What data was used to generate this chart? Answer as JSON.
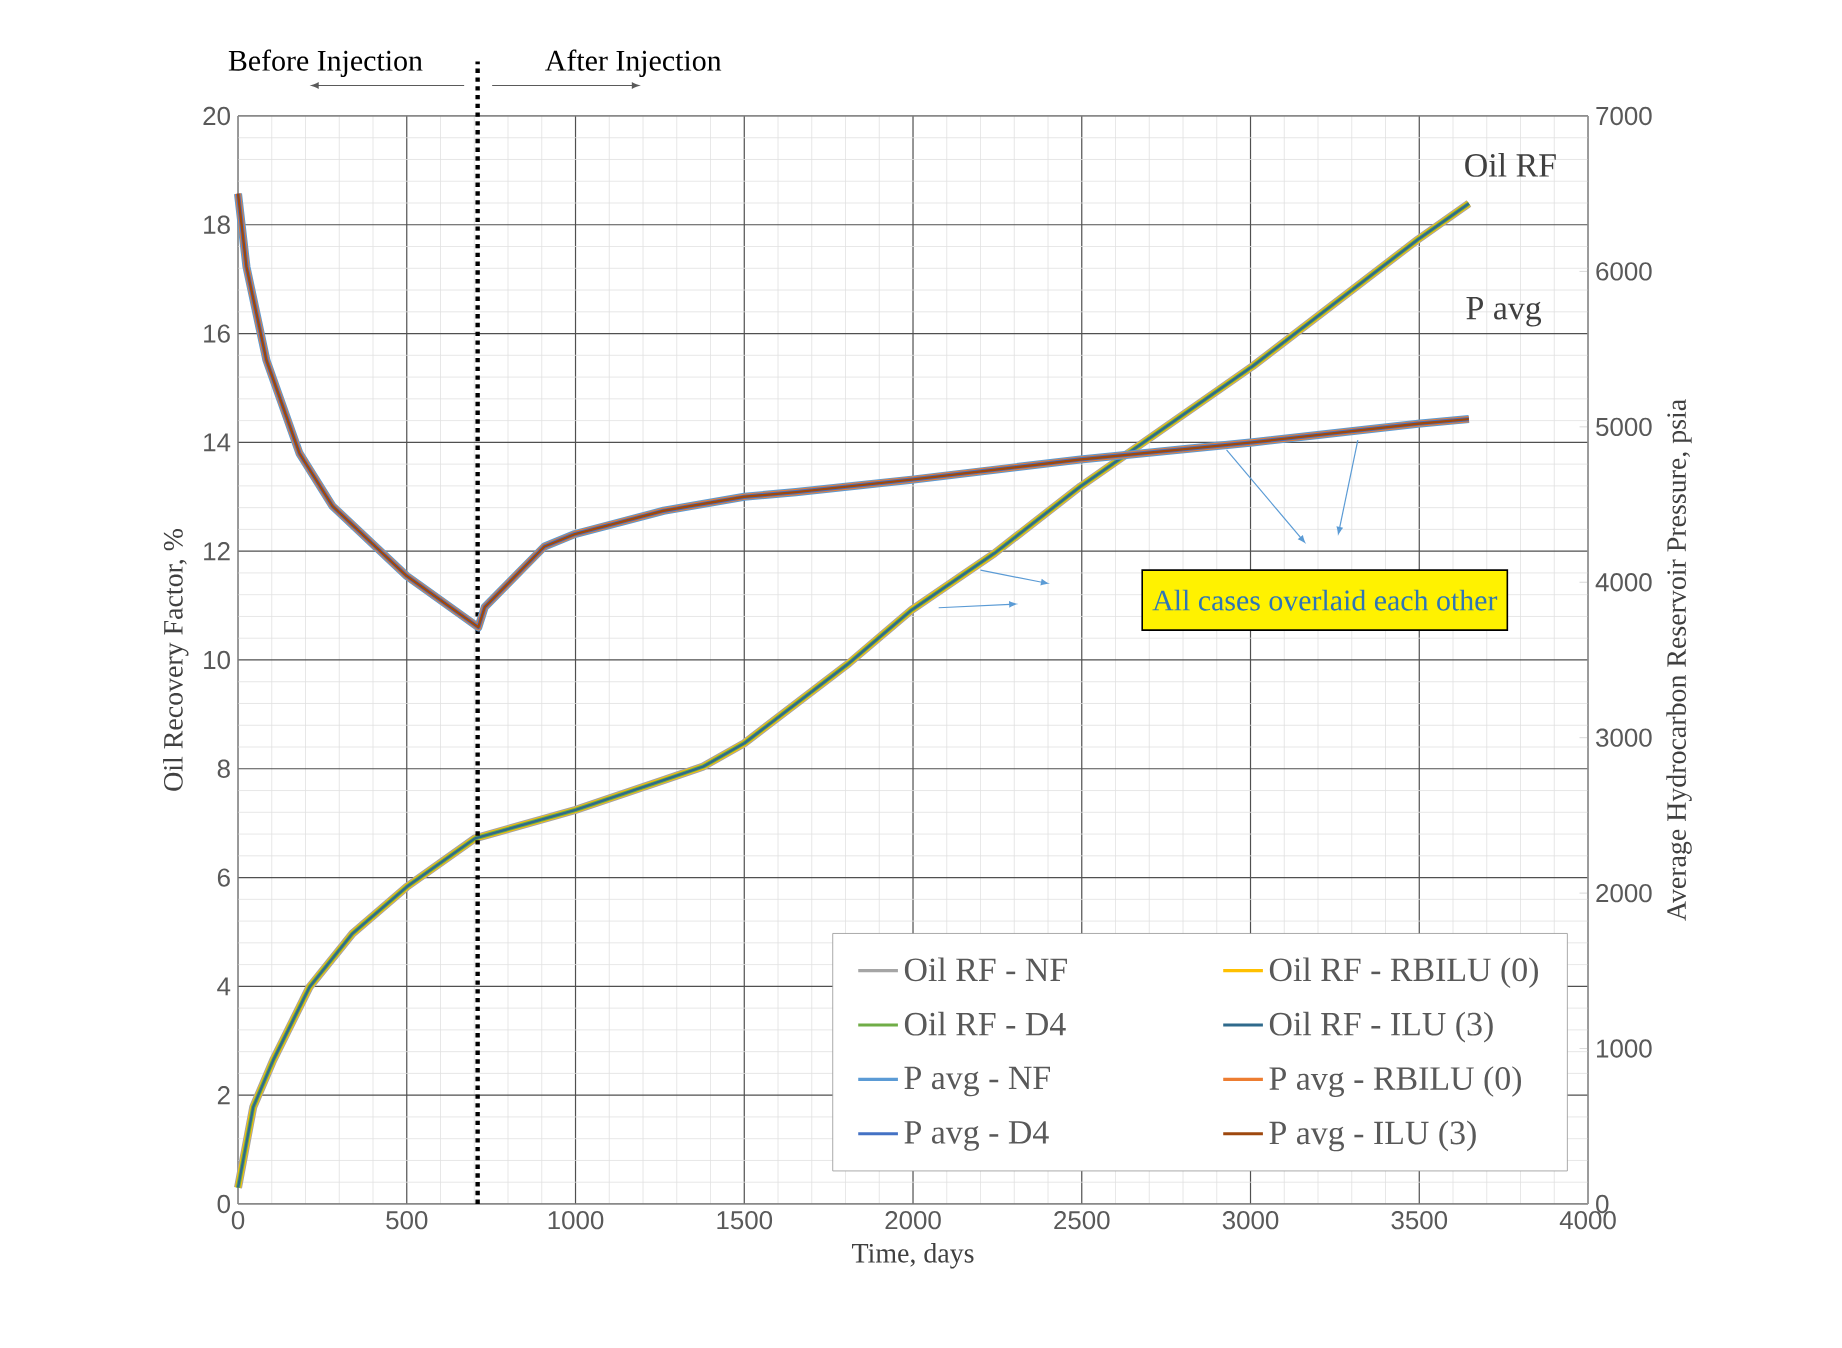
{
  "chart_data": {
    "type": "line",
    "xlabel": "Time, days",
    "ylabel": "Oil Recovery Factor, %",
    "y2label": "Average Hydrocarbon Reservoir Pressure, psia",
    "xlim": [
      0,
      4000
    ],
    "xticks": [
      0,
      500,
      1000,
      1500,
      2000,
      2500,
      3000,
      3500,
      4000
    ],
    "ylim": [
      0,
      20
    ],
    "yticks": [
      0,
      2,
      4,
      6,
      8,
      10,
      12,
      14,
      16,
      18,
      20
    ],
    "y2lim": [
      0,
      7000
    ],
    "y2ticks": [
      0,
      1000,
      2000,
      3000,
      4000,
      5000,
      6000,
      7000
    ],
    "grid": true,
    "legend": "bottom right",
    "marker": "none",
    "line_style": "solid",
    "ref_lines": [
      {
        "axis": "x",
        "value": 710,
        "color": "#000000",
        "line_style": "dotted"
      }
    ],
    "annotations": [
      "Before Injection",
      "After Injection",
      "Oil RF",
      "P avg",
      "All cases overlaid each other"
    ],
    "series": [
      {
        "name": "Oil RF - NF",
        "color": "#a5a5a5",
        "axis": "y",
        "x": [
          0,
          45,
          104,
          212,
          339,
          500,
          702,
          998,
          1261,
          1378,
          1500,
          1810,
          1996,
          2241,
          2496,
          3006,
          3496,
          3647
        ],
        "values": [
          0.3,
          1.78,
          2.64,
          3.99,
          4.97,
          5.83,
          6.72,
          7.24,
          7.79,
          8.04,
          8.47,
          9.94,
          10.92,
          11.96,
          13.19,
          15.4,
          17.73,
          18.39
        ]
      },
      {
        "name": "Oil RF - RBILU (0)",
        "color": "#ffc000",
        "axis": "y",
        "x": [
          0,
          45,
          104,
          212,
          339,
          500,
          702,
          998,
          1261,
          1378,
          1500,
          1810,
          1996,
          2241,
          2496,
          3006,
          3496,
          3647
        ],
        "values": [
          0.3,
          1.78,
          2.64,
          3.99,
          4.97,
          5.83,
          6.72,
          7.24,
          7.79,
          8.04,
          8.47,
          9.94,
          10.92,
          11.96,
          13.19,
          15.4,
          17.73,
          18.39
        ]
      },
      {
        "name": "Oil RF - D4",
        "color": "#70ad47",
        "axis": "y",
        "x": [
          0,
          45,
          104,
          212,
          339,
          500,
          702,
          998,
          1261,
          1378,
          1500,
          1810,
          1996,
          2241,
          2496,
          3006,
          3496,
          3647
        ],
        "values": [
          0.3,
          1.78,
          2.64,
          3.99,
          4.97,
          5.83,
          6.72,
          7.24,
          7.79,
          8.04,
          8.47,
          9.94,
          10.92,
          11.96,
          13.19,
          15.4,
          17.73,
          18.39
        ]
      },
      {
        "name": "Oil RF - ILU (3)",
        "color": "#2f6a8c",
        "axis": "y",
        "x": [
          0,
          45,
          104,
          212,
          339,
          500,
          702,
          998,
          1261,
          1378,
          1500,
          1810,
          1996,
          2241,
          2496,
          3006,
          3496,
          3647
        ],
        "values": [
          0.3,
          1.78,
          2.64,
          3.99,
          4.97,
          5.83,
          6.72,
          7.24,
          7.79,
          8.04,
          8.47,
          9.94,
          10.92,
          11.96,
          13.19,
          15.4,
          17.73,
          18.39
        ]
      },
      {
        "name": "P avg - NF",
        "color": "#5b9bd5",
        "axis": "y2",
        "x": [
          0,
          25,
          84,
          182,
          280,
          500,
          712,
          731,
          908,
          998,
          1261,
          1500,
          1653,
          1996,
          2496,
          3006,
          3496,
          3647
        ],
        "values": [
          6500,
          6030,
          5430,
          4830,
          4490,
          4040,
          3710,
          3840,
          4230,
          4310,
          4460,
          4550,
          4580,
          4660,
          4790,
          4900,
          5020,
          5050
        ]
      },
      {
        "name": "P avg - RBILU (0)",
        "color": "#ed7d31",
        "axis": "y2",
        "x": [
          0,
          25,
          84,
          182,
          280,
          500,
          712,
          731,
          908,
          998,
          1261,
          1500,
          1653,
          1996,
          2496,
          3006,
          3496,
          3647
        ],
        "values": [
          6500,
          6030,
          5430,
          4830,
          4490,
          4040,
          3710,
          3840,
          4230,
          4310,
          4460,
          4550,
          4580,
          4660,
          4790,
          4900,
          5020,
          5050
        ]
      },
      {
        "name": "P avg - D4",
        "color": "#4472c4",
        "axis": "y2",
        "x": [
          0,
          25,
          84,
          182,
          280,
          500,
          712,
          731,
          908,
          998,
          1261,
          1500,
          1653,
          1996,
          2496,
          3006,
          3496,
          3647
        ],
        "values": [
          6500,
          6030,
          5430,
          4830,
          4490,
          4040,
          3710,
          3840,
          4230,
          4310,
          4460,
          4550,
          4580,
          4660,
          4790,
          4900,
          5020,
          5050
        ]
      },
      {
        "name": "P avg - ILU (3)",
        "color": "#9e480e",
        "axis": "y2",
        "x": [
          0,
          25,
          84,
          182,
          280,
          500,
          712,
          731,
          908,
          998,
          1261,
          1500,
          1653,
          1996,
          2496,
          3006,
          3496,
          3647
        ],
        "values": [
          6500,
          6030,
          5430,
          4830,
          4490,
          4040,
          3710,
          3840,
          4230,
          4310,
          4460,
          4550,
          4580,
          4660,
          4790,
          4900,
          5020,
          5050
        ]
      }
    ]
  }
}
